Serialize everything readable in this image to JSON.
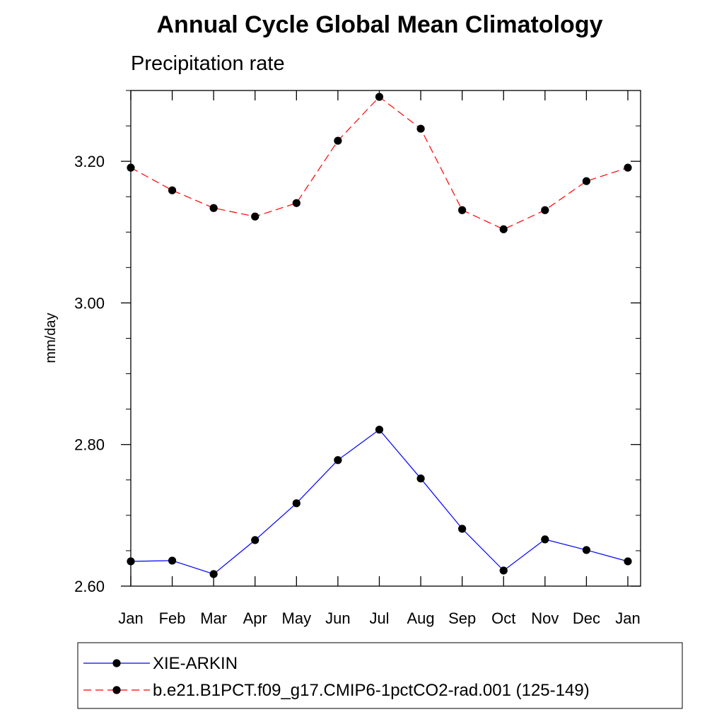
{
  "chart_data": {
    "type": "line",
    "title": "Annual Cycle Global Mean Climatology",
    "subtitle": "Precipitation rate",
    "xlabel": "",
    "ylabel": "mm/day",
    "ylim": [
      2.6,
      3.3
    ],
    "yticks": [
      {
        "value": 2.6,
        "label": "2.60"
      },
      {
        "value": 2.8,
        "label": "2.80"
      },
      {
        "value": 3.0,
        "label": "3.00"
      },
      {
        "value": 3.2,
        "label": "3.20"
      }
    ],
    "yminor_step": 0.05,
    "categories": [
      "Jan",
      "Feb",
      "Mar",
      "Apr",
      "May",
      "Jun",
      "Jul",
      "Aug",
      "Sep",
      "Oct",
      "Nov",
      "Dec",
      "Jan"
    ],
    "series": [
      {
        "name": "XIE-ARKIN",
        "color": "#0000ff",
        "dash": "solid",
        "values": [
          2.635,
          2.636,
          2.617,
          2.665,
          2.717,
          2.778,
          2.821,
          2.752,
          2.681,
          2.622,
          2.666,
          2.651,
          2.635
        ]
      },
      {
        "name": "b.e21.B1PCT.f09_g17.CMIP6-1pctCO2-rad.001 (125-149)",
        "color": "#ff0000",
        "dash": "dashed",
        "values": [
          3.191,
          3.159,
          3.134,
          3.122,
          3.141,
          3.229,
          3.291,
          3.246,
          3.131,
          3.104,
          3.131,
          3.172,
          3.191
        ]
      }
    ],
    "marker_color": "#000000",
    "grid": false,
    "legend_position": "bottom"
  }
}
